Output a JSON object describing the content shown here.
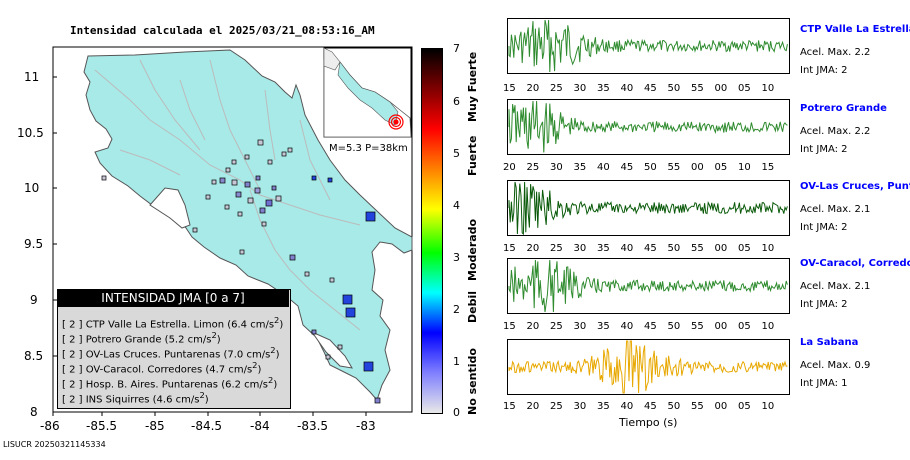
{
  "map": {
    "title": "Intensidad calculada el 2025/03/21_08:53:16_AM",
    "y_ticks": [
      "11",
      "10.5",
      "10",
      "9.5",
      "9",
      "8.5",
      "8"
    ],
    "x_ticks": [
      "-86",
      "-85.5",
      "-85",
      "-84.5",
      "-84",
      "-83.5",
      "-83"
    ],
    "inset_label": "M=5.3 P=38km",
    "footer_id": "LISUCR 20250321145334"
  },
  "colorbar": {
    "ticks": [
      "7",
      "6",
      "5",
      "4",
      "3",
      "2",
      "1",
      "0"
    ],
    "categories": [
      "Muy Fuerte",
      "Fuerte",
      "Moderado",
      "Debil",
      "No sentido"
    ],
    "colors": [
      "#e8e8e8",
      "#8080ff",
      "#0000ff",
      "#00ffff",
      "#00ff00",
      "#ffff00",
      "#ff8000",
      "#ff0000",
      "#800000",
      "#000000"
    ]
  },
  "legend": {
    "title": "INTENSIDAD JMA [0 a 7]",
    "rows": [
      {
        "level": "[ 2 ]",
        "text": "CTP Valle La Estrella. Limon (6.4 cm/s",
        "sup": "2",
        "close": ")"
      },
      {
        "level": "[ 2 ]",
        "text": "Potrero Grande (5.2 cm/s",
        "sup": "2",
        "close": ")"
      },
      {
        "level": "[ 2 ]",
        "text": "OV-Las Cruces. Puntarenas (7.0 cm/s",
        "sup": "2",
        "close": ")"
      },
      {
        "level": "[ 2 ]",
        "text": "OV-Caracol. Corredores (4.7 cm/s",
        "sup": "2",
        "close": ")"
      },
      {
        "level": "[ 2 ]",
        "text": "Hosp. B. Aires. Puntarenas (6.2 cm/s",
        "sup": "2",
        "close": ")"
      },
      {
        "level": "[ 2 ]",
        "text": "INS Siquirres (4.6 cm/s",
        "sup": "2",
        "close": ")"
      }
    ]
  },
  "stations": [
    {
      "name": "CTP Valle La Estrella, L",
      "acel": "Acel. Max. 2.2",
      "int": "Int JMA: 2",
      "ticks": [
        "15",
        "20",
        "25",
        "30",
        "35",
        "40",
        "45",
        "50",
        "55",
        "00",
        "05",
        "10"
      ],
      "color": "#2e8b2e"
    },
    {
      "name": "Potrero Grande",
      "acel": "Acel. Max. 2.2",
      "int": "Int JMA: 2",
      "ticks": [
        "20",
        "25",
        "30",
        "35",
        "40",
        "45",
        "50",
        "55",
        "00",
        "05",
        "10",
        "15"
      ],
      "color": "#2e8b2e"
    },
    {
      "name": "OV-Las Cruces, Puntar",
      "acel": "Acel. Max. 2.1",
      "int": "Int JMA: 2",
      "ticks": [
        "15",
        "20",
        "25",
        "30",
        "35",
        "40",
        "45",
        "50",
        "55",
        "00",
        "05",
        "10"
      ],
      "color": "#0a5a0a"
    },
    {
      "name": "OV-Caracol, Corredore",
      "acel": "Acel. Max. 2.1",
      "int": "Int JMA: 2",
      "ticks": [
        "15",
        "20",
        "25",
        "30",
        "35",
        "40",
        "45",
        "50",
        "55",
        "00",
        "05",
        "10"
      ],
      "color": "#2e8b2e"
    },
    {
      "name": "La Sabana",
      "acel": "Acel. Max. 0.9",
      "int": "Int JMA: 1",
      "ticks": [
        "15",
        "20",
        "25",
        "30",
        "35",
        "40",
        "45",
        "50",
        "55",
        "00",
        "05",
        "10"
      ],
      "color": "#e8a800"
    }
  ],
  "time_axis_label": "Tiempo (s)"
}
